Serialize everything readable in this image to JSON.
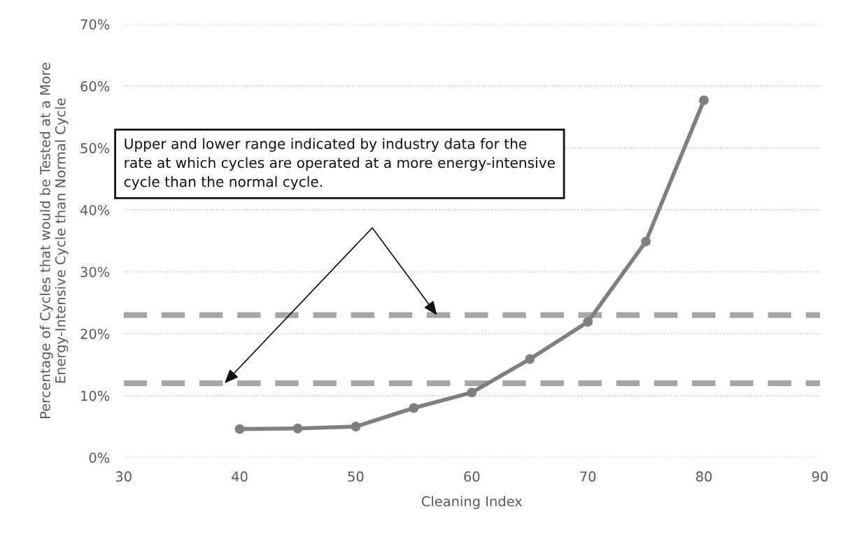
{
  "chart_data": {
    "type": "line",
    "xlabel": "Cleaning Index",
    "ylabel": "Percentage of Cycles that would be Tested at a More\nEnergy-Intensive Cycle than Normal Cycle",
    "x": [
      40,
      45,
      50,
      55,
      60,
      65,
      70,
      75,
      80
    ],
    "series": [
      {
        "color": "#7f7f7f",
        "values": [
          4.6,
          4.7,
          5.0,
          8.0,
          10.5,
          15.9,
          21.9,
          34.9,
          57.7
        ]
      }
    ],
    "xlim": [
      30,
      90
    ],
    "xticks": [
      30,
      40,
      50,
      60,
      70,
      80,
      90
    ],
    "ylim": [
      0,
      70
    ],
    "yticks": [
      {
        "value": 0,
        "label": "0%"
      },
      {
        "value": 10,
        "label": "10%"
      },
      {
        "value": 20,
        "label": "20%"
      },
      {
        "value": 30,
        "label": "30%"
      },
      {
        "value": 40,
        "label": "40%"
      },
      {
        "value": 50,
        "label": "50%"
      },
      {
        "value": 60,
        "label": "60%"
      },
      {
        "value": 70,
        "label": "70%"
      }
    ],
    "ref_lines": [
      {
        "axis": "y",
        "value": 23,
        "color": "#a6a6a6",
        "line_style": "dashed"
      },
      {
        "axis": "y",
        "value": 12,
        "color": "#a6a6a6",
        "line_style": "dashed"
      }
    ],
    "annotations": [
      "Upper and lower range indicated by industry data for the\nrate at which cycles are operated at a more energy-intensive\ncycle than the normal cycle."
    ],
    "grid": "y",
    "marker": "circle",
    "line_style": "solid",
    "legend": false
  }
}
